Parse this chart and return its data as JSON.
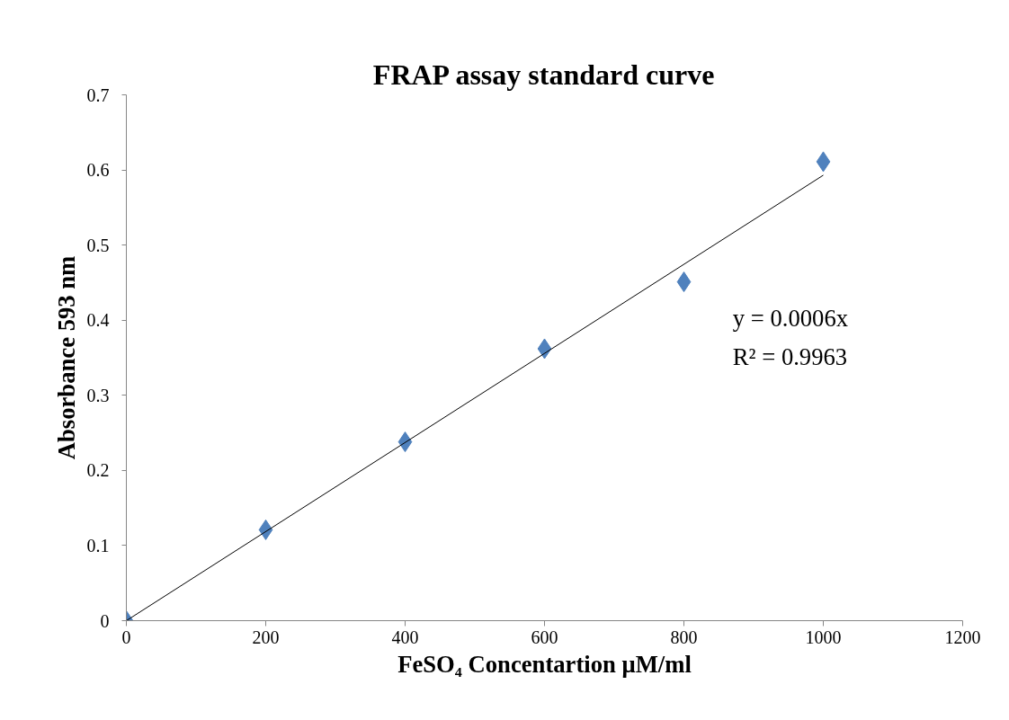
{
  "chart_data": {
    "type": "scatter",
    "title": "FRAP assay standard curve",
    "xlabel": "FeSO₄ Concentartion μM/ml",
    "ylabel": "Absorbance 593 nm",
    "xlim": [
      0,
      1200
    ],
    "xticks": [
      0,
      200,
      400,
      600,
      800,
      1000,
      1200
    ],
    "ylim": [
      0,
      0.7
    ],
    "yticks": [
      0,
      0.1,
      0.2,
      0.3,
      0.4,
      0.5,
      0.6,
      0.7
    ],
    "grid": false,
    "marker": "diamond",
    "series": [
      {
        "color": "#4f81bd",
        "x": [
          0,
          200,
          400,
          600,
          800,
          1000
        ],
        "values": [
          0,
          0.121,
          0.238,
          0.362,
          0.451,
          0.611
        ]
      },
      {
        "type": "line",
        "marker": "none",
        "color": "#000000",
        "x": [
          0,
          1000
        ],
        "values": [
          0,
          0.593
        ]
      }
    ],
    "annotations": [
      "y = 0.0006x",
      "R² = 0.9963"
    ]
  }
}
